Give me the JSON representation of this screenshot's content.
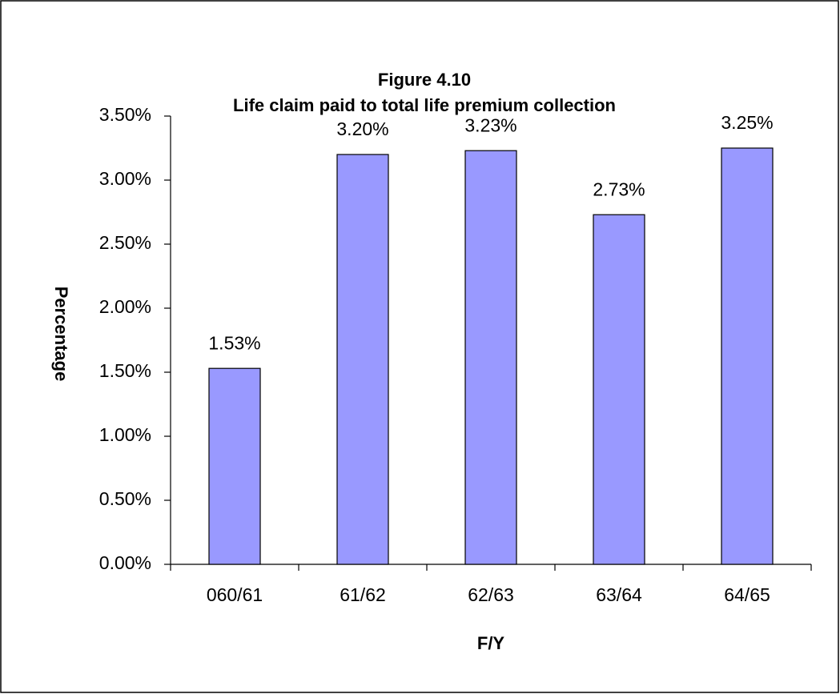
{
  "chart_data": {
    "type": "bar",
    "title": "Figure 4.10",
    "subtitle": "Life claim paid to total life premium collection",
    "x_label": "F/Y",
    "y_label": "Percentage",
    "categories": [
      "060/61",
      "61/62",
      "62/63",
      "63/64",
      "64/65"
    ],
    "values": [
      1.53,
      3.2,
      3.23,
      2.73,
      3.25
    ],
    "value_labels": [
      "1.53%",
      "3.20%",
      "3.23%",
      "2.73%",
      "3.25%"
    ],
    "color": "#9999ff",
    "ylim": [
      0,
      3.5
    ],
    "yticks": [
      {
        "value": 0,
        "label": "0.00%"
      },
      {
        "value": 0.5,
        "label": "0.50%"
      },
      {
        "value": 1,
        "label": "1.00%"
      },
      {
        "value": 1.5,
        "label": "1.50%"
      },
      {
        "value": 2,
        "label": "2.00%"
      },
      {
        "value": 2.5,
        "label": "2.50%"
      },
      {
        "value": 3,
        "label": "3.00%"
      },
      {
        "value": 3.5,
        "label": "3.50%"
      }
    ],
    "grid": false
  }
}
